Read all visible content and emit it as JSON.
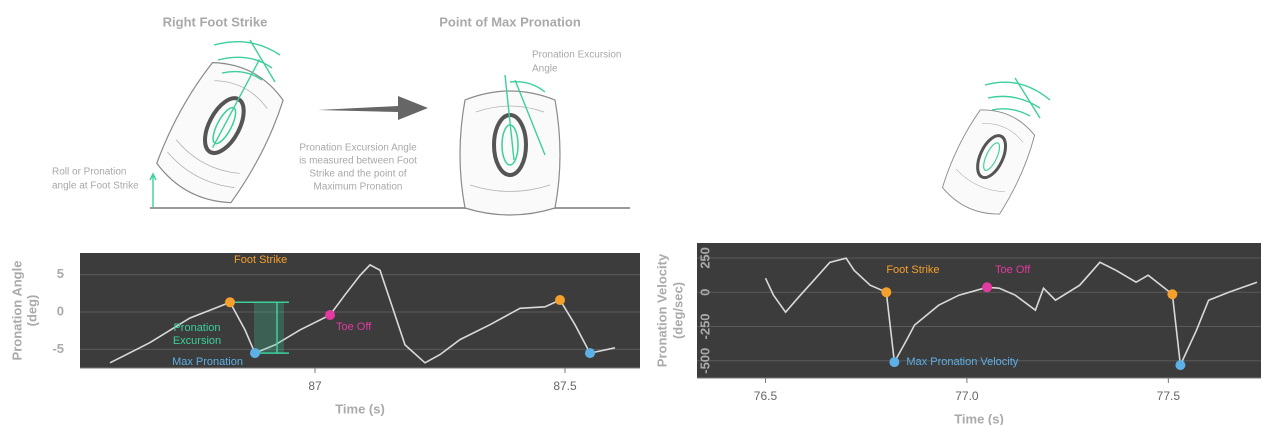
{
  "illustration": {
    "title_left": "Right Foot Strike",
    "title_right": "Point of Max Pronation",
    "note_angle": [
      "Pronation Excursion",
      "Angle"
    ],
    "note_center": [
      "Pronation Excursion Angle",
      "is  measured between Foot",
      "Strike and the point of",
      "Maximum Pronation"
    ],
    "note_left": [
      "Roll or Pronation",
      "angle at Foot Strike"
    ]
  },
  "chart_data": [
    {
      "type": "line",
      "ylabel": [
        "Pronation Angle",
        "(deg)"
      ],
      "xlabel": "Time (s)",
      "xlim": [
        86.53,
        87.65
      ],
      "ylim": [
        -7.5,
        7.9
      ],
      "xticks": [
        87,
        87.5
      ],
      "yticks": [
        5,
        0,
        -5
      ],
      "grid": true,
      "background": "#3c3c3c",
      "x": [
        86.59,
        86.67,
        86.75,
        86.8,
        86.83,
        86.86,
        86.88,
        86.92,
        86.97,
        87.03,
        87.06,
        87.09,
        87.11,
        87.13,
        87.15,
        87.18,
        87.22,
        87.25,
        87.29,
        87.35,
        87.41,
        87.46,
        87.49,
        87.52,
        87.55,
        87.6
      ],
      "series": [
        {
          "color": "#d9d9d9",
          "values": [
            -6.8,
            -4.1,
            -0.8,
            0.5,
            1.3,
            -2.4,
            -5.5,
            -4.4,
            -2.4,
            -0.4,
            2.3,
            4.9,
            6.3,
            5.6,
            1.6,
            -4.4,
            -6.8,
            -5.7,
            -3.7,
            -1.7,
            0.5,
            0.7,
            1.6,
            -1.7,
            -5.5,
            -4.8
          ]
        }
      ],
      "markers": [
        {
          "name": "Foot Strike",
          "color": "#f5a02c",
          "x": [
            86.83,
            87.49
          ],
          "y": [
            1.3,
            1.6
          ]
        },
        {
          "name": "Toe Off",
          "color": "#e23aa0",
          "x": [
            87.03
          ],
          "y": [
            -0.4
          ]
        },
        {
          "name": "Max Pronation",
          "color": "#5cb0e6",
          "x": [
            86.88,
            87.55
          ],
          "y": [
            -5.5,
            -5.5
          ]
        }
      ],
      "annotations": [
        {
          "text": [
            "Pronation",
            "Excursion"
          ],
          "color": "#3ccf9a"
        }
      ]
    },
    {
      "type": "line",
      "ylabel": [
        "Pronation Velocity",
        "(deg/sec)"
      ],
      "xlabel": "Time (s)",
      "xlim": [
        76.33,
        77.73
      ],
      "ylim": [
        -626,
        359
      ],
      "xticks": [
        76.5,
        {
          "value": 77,
          "label": "77.0"
        },
        77.5
      ],
      "yticks": [
        250,
        0,
        -250,
        -500
      ],
      "grid": true,
      "background": "#3c3c3c",
      "x": [
        76.5,
        76.52,
        76.55,
        76.58,
        76.62,
        76.66,
        76.7,
        76.72,
        76.76,
        76.8,
        76.82,
        76.85,
        76.87,
        76.93,
        76.98,
        77.05,
        77.08,
        77.12,
        77.17,
        77.19,
        77.22,
        77.28,
        77.33,
        77.37,
        77.42,
        77.45,
        77.51,
        77.53,
        77.57,
        77.6,
        77.65,
        77.72
      ],
      "series": [
        {
          "color": "#d9d9d9",
          "values": [
            102,
            -22,
            -146,
            -44,
            87,
            218,
            248,
            160,
            51,
            0,
            -510,
            -350,
            -240,
            -95,
            -22,
            36,
            29,
            -22,
            -131,
            29,
            -58,
            51,
            218,
            160,
            73,
            124,
            -15,
            -532,
            -277,
            -58,
            0,
            73
          ]
        }
      ],
      "markers": [
        {
          "name": "Foot Strike",
          "color": "#f5a02c",
          "x": [
            76.8,
            77.51
          ],
          "y": [
            0,
            -15
          ]
        },
        {
          "name": "Toe Off",
          "color": "#e23aa0",
          "x": [
            77.05
          ],
          "y": [
            36
          ]
        },
        {
          "name": "Max Pronation Velocity",
          "color": "#5cb0e6",
          "x": [
            76.82,
            77.53
          ],
          "y": [
            -510,
            -532
          ]
        }
      ],
      "annotations": []
    }
  ]
}
